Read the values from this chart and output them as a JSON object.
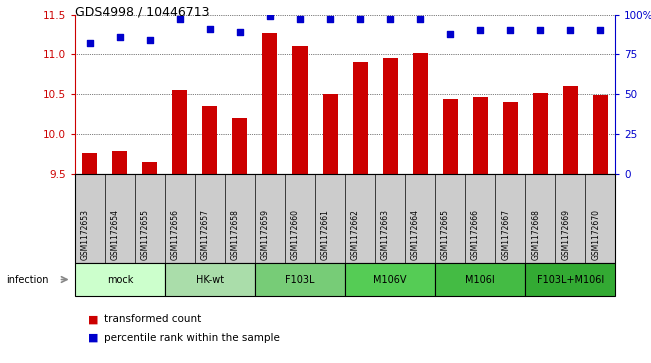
{
  "title": "GDS4998 / 10446713",
  "samples": [
    "GSM1172653",
    "GSM1172654",
    "GSM1172655",
    "GSM1172656",
    "GSM1172657",
    "GSM1172658",
    "GSM1172659",
    "GSM1172660",
    "GSM1172661",
    "GSM1172662",
    "GSM1172663",
    "GSM1172664",
    "GSM1172665",
    "GSM1172666",
    "GSM1172667",
    "GSM1172668",
    "GSM1172669",
    "GSM1172670"
  ],
  "bar_values": [
    9.77,
    9.79,
    9.65,
    10.55,
    10.35,
    10.2,
    11.27,
    11.1,
    10.51,
    10.91,
    10.96,
    11.02,
    10.44,
    10.47,
    10.4,
    10.52,
    10.6,
    10.49
  ],
  "percentile_values": [
    82,
    86,
    84,
    97,
    91,
    89,
    99,
    97,
    97,
    97,
    97,
    97,
    88,
    90,
    90,
    90,
    90,
    90
  ],
  "bar_color": "#cc0000",
  "dot_color": "#0000cc",
  "ylim_left": [
    9.5,
    11.5
  ],
  "ylim_right": [
    0,
    100
  ],
  "yticks_left": [
    9.5,
    10.0,
    10.5,
    11.0,
    11.5
  ],
  "yticks_right": [
    0,
    25,
    50,
    75,
    100
  ],
  "groups": [
    {
      "label": "mock",
      "start": 0,
      "end": 3,
      "color": "#ccffcc"
    },
    {
      "label": "HK-wt",
      "start": 3,
      "end": 6,
      "color": "#aaddaa"
    },
    {
      "label": "F103L",
      "start": 6,
      "end": 9,
      "color": "#77cc77"
    },
    {
      "label": "M106V",
      "start": 9,
      "end": 12,
      "color": "#55cc55"
    },
    {
      "label": "M106I",
      "start": 12,
      "end": 15,
      "color": "#44bb44"
    },
    {
      "label": "F103L+M106I",
      "start": 15,
      "end": 18,
      "color": "#33aa33"
    }
  ],
  "sample_bg_color": "#cccccc",
  "infection_label": "infection",
  "legend_bar_label": "transformed count",
  "legend_dot_label": "percentile rank within the sample",
  "left_axis_color": "#cc0000",
  "right_axis_color": "#0000cc",
  "title_fontsize": 9,
  "bar_width": 0.5
}
